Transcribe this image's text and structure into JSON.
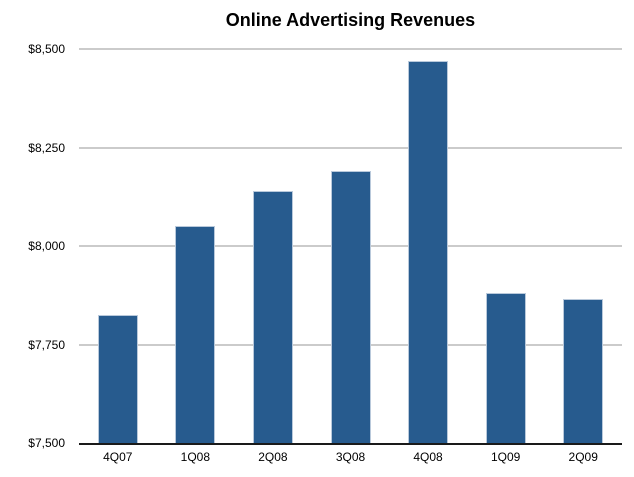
{
  "page": {
    "background_color": "#ffffff"
  },
  "chart_data": {
    "type": "bar",
    "title": "Online Advertising Revenues",
    "categories": [
      "4Q07",
      "1Q08",
      "2Q08",
      "3Q08",
      "4Q08",
      "1Q09",
      "2Q09"
    ],
    "values": [
      7825,
      8050,
      8140,
      8190,
      8470,
      7880,
      7865
    ],
    "xlabel": "",
    "ylabel": "",
    "ylim": [
      7500,
      8500
    ],
    "y_ticks": [
      {
        "value": 8500,
        "label": "$8,500"
      },
      {
        "value": 8250,
        "label": "$8,250"
      },
      {
        "value": 8000,
        "label": "$8,000"
      },
      {
        "value": 7750,
        "label": "$7,750"
      },
      {
        "value": 7500,
        "label": "$7,500"
      }
    ],
    "grid": true,
    "legend_position": "none",
    "bar_color": "#275b8e",
    "bar_border_color": "#b9c9db",
    "gridline_color": "#cbcbcb",
    "axis_line_color": "#1a1a1a",
    "text_color": "#000000"
  }
}
